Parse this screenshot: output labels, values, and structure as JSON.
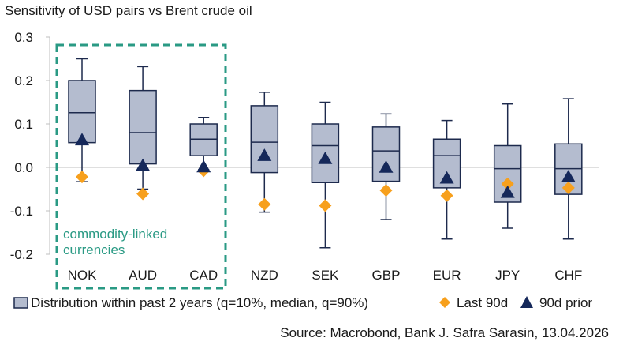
{
  "chart_data": {
    "type": "boxplot",
    "title": "Sensitivity of USD pairs vs Brent crude oil",
    "source": "Source: Macrobond, Bank J. Safra Sarasin, 13.04.2026",
    "ylim": [
      -0.2,
      0.3
    ],
    "yticks": [
      {
        "value": 0.3,
        "label": "0.3"
      },
      {
        "value": 0.2,
        "label": "0.2"
      },
      {
        "value": 0.1,
        "label": "0.1"
      },
      {
        "value": 0.0,
        "label": "0.0"
      },
      {
        "value": -0.1,
        "label": "-0.1"
      },
      {
        "value": -0.2,
        "label": "-0.2"
      }
    ],
    "categories": [
      "NOK",
      "AUD",
      "CAD",
      "NZD",
      "SEK",
      "GBP",
      "EUR",
      "JPY",
      "CHF"
    ],
    "boxes": [
      {
        "name": "NOK",
        "whisker_low": -0.033,
        "q10": 0.057,
        "median": 0.126,
        "q90": 0.2,
        "whisker_high": 0.25,
        "last_90d": -0.022,
        "prior_90d": 0.063
      },
      {
        "name": "AUD",
        "whisker_low": -0.05,
        "q10": 0.008,
        "median": 0.08,
        "q90": 0.177,
        "whisker_high": 0.232,
        "last_90d": -0.061,
        "prior_90d": 0.004
      },
      {
        "name": "CAD",
        "whisker_low": -0.005,
        "q10": 0.027,
        "median": 0.065,
        "q90": 0.1,
        "whisker_high": 0.115,
        "last_90d": -0.008,
        "prior_90d": 0.001
      },
      {
        "name": "NZD",
        "whisker_low": -0.103,
        "q10": -0.012,
        "median": 0.058,
        "q90": 0.142,
        "whisker_high": 0.173,
        "last_90d": -0.085,
        "prior_90d": 0.027
      },
      {
        "name": "SEK",
        "whisker_low": -0.185,
        "q10": -0.035,
        "median": 0.05,
        "q90": 0.1,
        "whisker_high": 0.15,
        "last_90d": -0.088,
        "prior_90d": 0.02
      },
      {
        "name": "GBP",
        "whisker_low": -0.12,
        "q10": -0.032,
        "median": 0.038,
        "q90": 0.093,
        "whisker_high": 0.123,
        "last_90d": -0.053,
        "prior_90d": 0.0
      },
      {
        "name": "EUR",
        "whisker_low": -0.165,
        "q10": -0.047,
        "median": 0.027,
        "q90": 0.065,
        "whisker_high": 0.108,
        "last_90d": -0.065,
        "prior_90d": -0.025
      },
      {
        "name": "JPY",
        "whisker_low": -0.14,
        "q10": -0.08,
        "median": -0.003,
        "q90": 0.05,
        "whisker_high": 0.146,
        "last_90d": -0.038,
        "prior_90d": -0.058
      },
      {
        "name": "CHF",
        "whisker_low": -0.165,
        "q10": -0.062,
        "median": -0.003,
        "q90": 0.054,
        "whisker_high": 0.158,
        "last_90d": -0.047,
        "prior_90d": -0.022
      }
    ],
    "highlight": {
      "label_line1": "commodity-linked",
      "label_line2": "currencies",
      "categories": [
        "NOK",
        "AUD",
        "CAD"
      ]
    },
    "legend": {
      "position": "bottom",
      "distribution": "Distribution within past 2 years (q=10%, median, q=90%)",
      "last_90d": "Last 90d",
      "prior_90d": "90d prior"
    },
    "colors": {
      "box_fill": "#b4bccf",
      "box_stroke": "#1d2a4d",
      "last_90d": "#f7a01d",
      "prior_90d": "#15285a",
      "highlight": "#2a9a84",
      "axis": "#bfbfbf"
    }
  }
}
